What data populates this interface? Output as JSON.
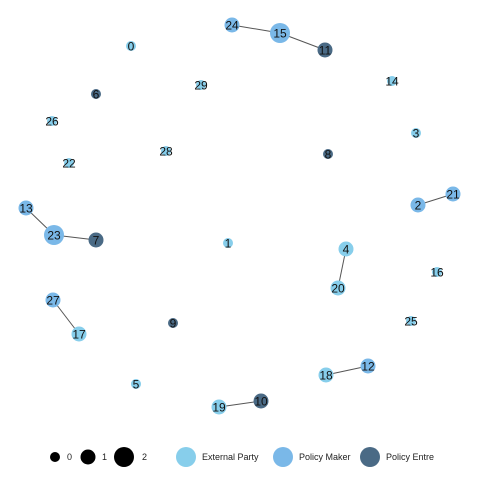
{
  "groups": {
    "external": {
      "label": "External Party",
      "color": "#87ceeb"
    },
    "maker": {
      "label": "Policy Maker",
      "color": "#7ab8e8"
    },
    "entre": {
      "label": "Policy Entre",
      "color": "#4a6a85"
    }
  },
  "size_legend": [
    {
      "label": "0",
      "degree": 0
    },
    {
      "label": "1",
      "degree": 1
    },
    {
      "label": "2",
      "degree": 2
    }
  ],
  "nodes": [
    {
      "id": "0",
      "group": "external",
      "degree": 0
    },
    {
      "id": "1",
      "group": "external",
      "degree": 0
    },
    {
      "id": "2",
      "group": "maker",
      "degree": 1
    },
    {
      "id": "3",
      "group": "external",
      "degree": 0
    },
    {
      "id": "4",
      "group": "external",
      "degree": 1
    },
    {
      "id": "5",
      "group": "external",
      "degree": 0
    },
    {
      "id": "6",
      "group": "entre",
      "degree": 0
    },
    {
      "id": "7",
      "group": "entre",
      "degree": 1
    },
    {
      "id": "8",
      "group": "entre",
      "degree": 0
    },
    {
      "id": "9",
      "group": "entre",
      "degree": 0
    },
    {
      "id": "10",
      "group": "entre",
      "degree": 1
    },
    {
      "id": "11",
      "group": "entre",
      "degree": 1
    },
    {
      "id": "12",
      "group": "maker",
      "degree": 1
    },
    {
      "id": "13",
      "group": "maker",
      "degree": 1
    },
    {
      "id": "14",
      "group": "external",
      "degree": 0
    },
    {
      "id": "15",
      "group": "maker",
      "degree": 2
    },
    {
      "id": "16",
      "group": "external",
      "degree": 0
    },
    {
      "id": "17",
      "group": "external",
      "degree": 1
    },
    {
      "id": "18",
      "group": "external",
      "degree": 1
    },
    {
      "id": "19",
      "group": "external",
      "degree": 1
    },
    {
      "id": "20",
      "group": "external",
      "degree": 1
    },
    {
      "id": "21",
      "group": "maker",
      "degree": 1
    },
    {
      "id": "22",
      "group": "external",
      "degree": 0
    },
    {
      "id": "23",
      "group": "maker",
      "degree": 2
    },
    {
      "id": "24",
      "group": "maker",
      "degree": 1
    },
    {
      "id": "25",
      "group": "external",
      "degree": 0
    },
    {
      "id": "26",
      "group": "external",
      "degree": 0
    },
    {
      "id": "27",
      "group": "maker",
      "degree": 1
    },
    {
      "id": "28",
      "group": "external",
      "degree": 0
    },
    {
      "id": "29",
      "group": "external",
      "degree": 0
    }
  ],
  "edges": [
    [
      "24",
      "15"
    ],
    [
      "15",
      "11"
    ],
    [
      "13",
      "23"
    ],
    [
      "23",
      "7"
    ],
    [
      "2",
      "21"
    ],
    [
      "4",
      "20"
    ],
    [
      "27",
      "17"
    ],
    [
      "18",
      "12"
    ],
    [
      "19",
      "10"
    ]
  ]
}
